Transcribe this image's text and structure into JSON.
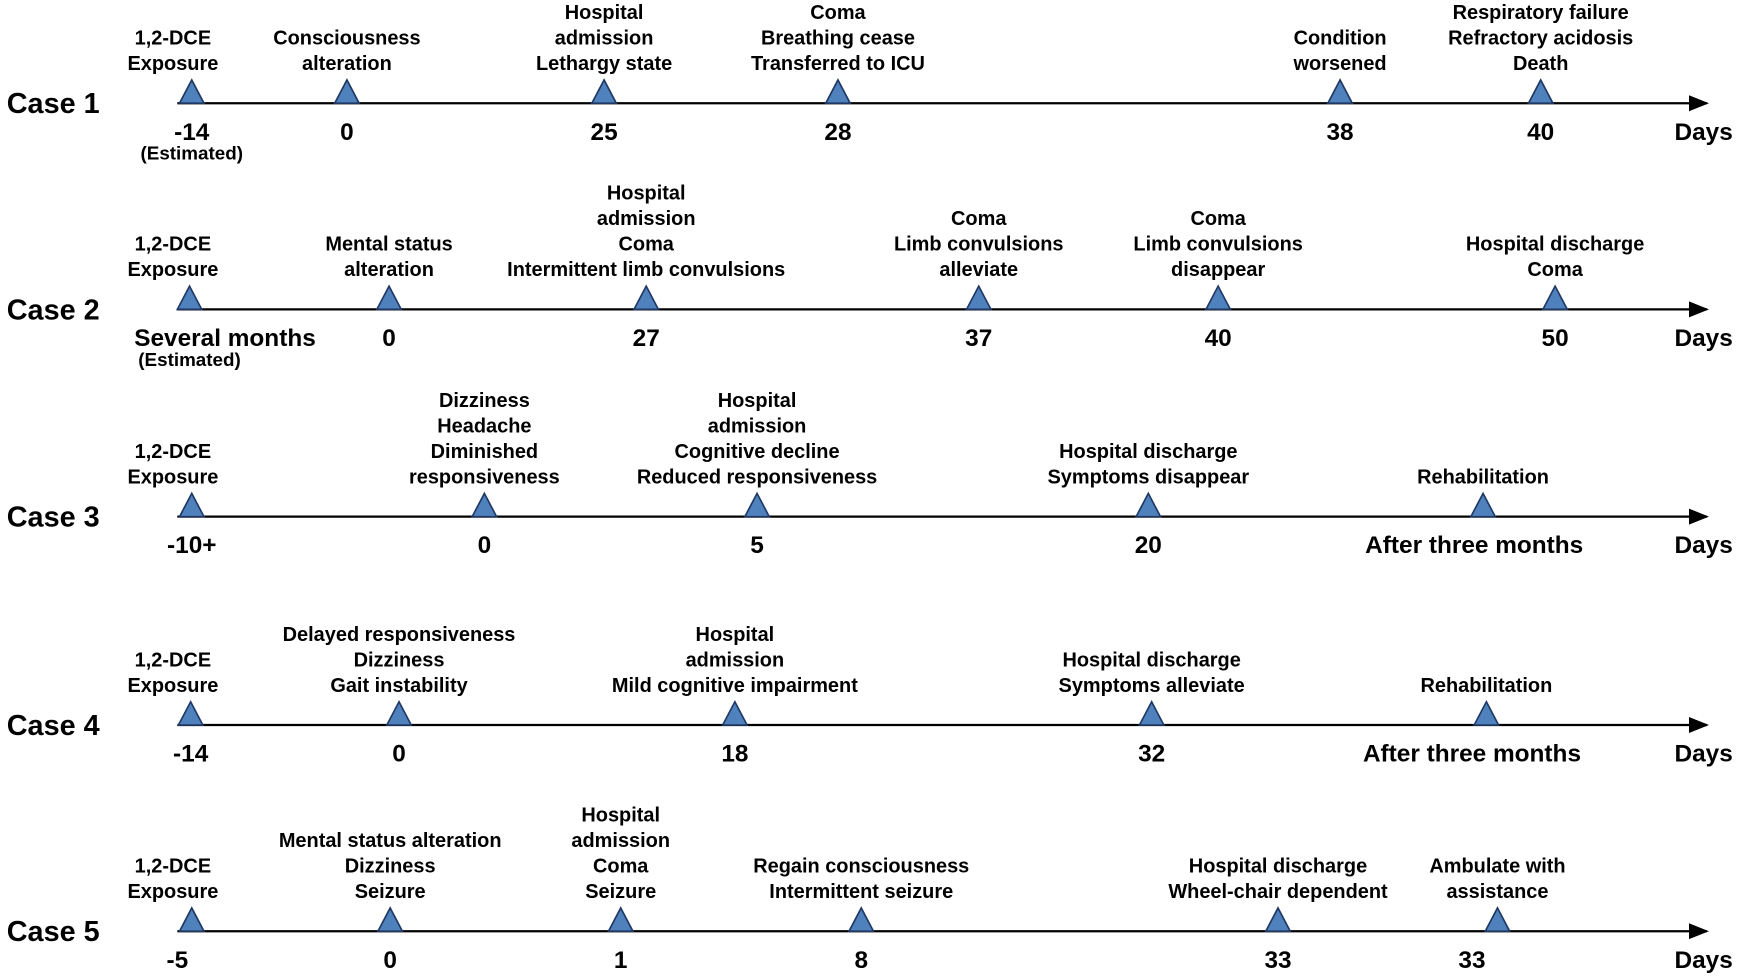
{
  "cases": [
    {
      "label": "Case 1",
      "unit": "Days",
      "events": [
        {
          "lines": [
            "1,2-DCE",
            "Exposure"
          ],
          "day": "-14",
          "note": "(Estimated)"
        },
        {
          "lines": [
            "Consciousness",
            "alteration"
          ],
          "day": "0"
        },
        {
          "lines": [
            "Hospital",
            "admission",
            "Lethargy state"
          ],
          "day": "25"
        },
        {
          "lines": [
            "Coma",
            "Breathing cease",
            "Transferred to ICU"
          ],
          "day": "28"
        },
        {
          "lines": [
            "Condition",
            "worsened"
          ],
          "day": "38"
        },
        {
          "lines": [
            "Respiratory failure",
            "Refractory acidosis",
            "Death"
          ],
          "day": "40"
        }
      ]
    },
    {
      "label": "Case 2",
      "unit": "Days",
      "events": [
        {
          "lines": [
            "1,2-DCE",
            "Exposure"
          ],
          "day": "Several months",
          "note": "(Estimated)"
        },
        {
          "lines": [
            "Mental status",
            "alteration"
          ],
          "day": "0"
        },
        {
          "lines": [
            "Hospital",
            "admission",
            "Coma",
            "Intermittent limb convulsions"
          ],
          "day": "27"
        },
        {
          "lines": [
            "Coma",
            "Limb convulsions",
            "alleviate"
          ],
          "day": "37"
        },
        {
          "lines": [
            "Coma",
            "Limb convulsions",
            "disappear"
          ],
          "day": "40"
        },
        {
          "lines": [
            "Hospital discharge",
            "Coma"
          ],
          "day": "50"
        }
      ]
    },
    {
      "label": "Case 3",
      "unit": "Days",
      "events": [
        {
          "lines": [
            "1,2-DCE",
            "Exposure"
          ],
          "day": "-10+"
        },
        {
          "lines": [
            "Dizziness",
            "Headache",
            "Diminished",
            "responsiveness"
          ],
          "day": "0"
        },
        {
          "lines": [
            "Hospital",
            "admission",
            "Cognitive decline",
            "Reduced responsiveness"
          ],
          "day": "5"
        },
        {
          "lines": [
            "Hospital discharge",
            "Symptoms disappear"
          ],
          "day": "20"
        },
        {
          "lines": [
            "Rehabilitation"
          ],
          "day": "After three months"
        }
      ]
    },
    {
      "label": "Case 4",
      "unit": "Days",
      "events": [
        {
          "lines": [
            "1,2-DCE",
            "Exposure"
          ],
          "day": "-14"
        },
        {
          "lines": [
            "Delayed responsiveness",
            "Dizziness",
            "Gait instability"
          ],
          "day": "0"
        },
        {
          "lines": [
            "Hospital",
            "admission",
            "Mild cognitive impairment"
          ],
          "day": "18"
        },
        {
          "lines": [
            "Hospital discharge",
            "Symptoms alleviate"
          ],
          "day": "32"
        },
        {
          "lines": [
            "Rehabilitation"
          ],
          "day": "After three months"
        }
      ]
    },
    {
      "label": "Case 5",
      "unit": "Days",
      "events": [
        {
          "lines": [
            "1,2-DCE",
            "Exposure"
          ],
          "day": "-5"
        },
        {
          "lines": [
            "Mental status alteration",
            "Dizziness",
            "Seizure"
          ],
          "day": "0"
        },
        {
          "lines": [
            "Hospital",
            "admission",
            "Coma",
            "Seizure"
          ],
          "day": "1"
        },
        {
          "lines": [
            "Regain consciousness",
            "Intermittent seizure"
          ],
          "day": "8"
        },
        {
          "lines": [
            "Hospital discharge",
            "Wheel-chair dependent"
          ],
          "day": "33"
        },
        {
          "lines": [
            "Ambulate with",
            "assistance"
          ],
          "day": "33"
        }
      ]
    }
  ]
}
